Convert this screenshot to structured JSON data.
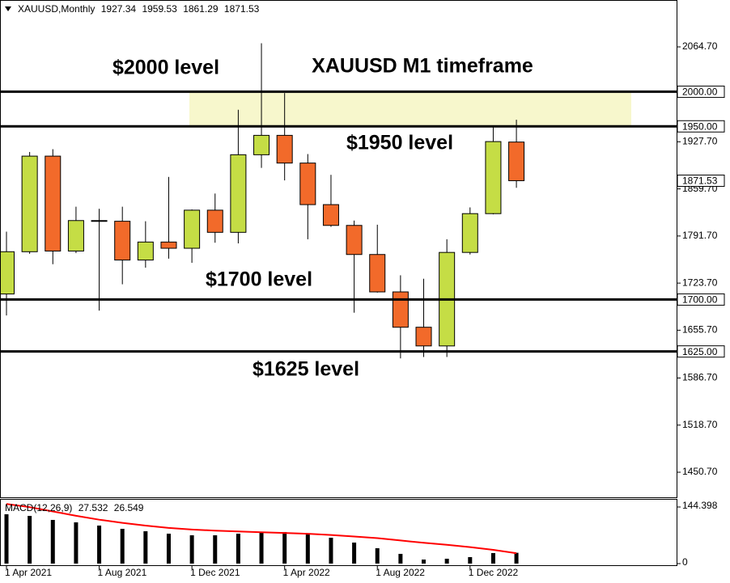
{
  "chart_data": [
    {
      "type": "candlestick",
      "title": "XAUUSD,Monthly",
      "categories": [
        "1 Apr 2021",
        null,
        null,
        null,
        "1 Aug 2021",
        null,
        null,
        null,
        "1 Dec 2021",
        null,
        null,
        null,
        "1 Apr 2022",
        null,
        null,
        null,
        "1 Aug 2022",
        null,
        null,
        null,
        "1 Dec 2022",
        null,
        null
      ],
      "open": [
        1708,
        1769,
        1907,
        1770,
        1814,
        1813,
        1757,
        1783,
        1774,
        1829,
        1797,
        1909,
        1937,
        1897,
        1837,
        1807,
        1765,
        1711,
        1660,
        1633,
        1768,
        1824,
        1927.34
      ],
      "high": [
        1798,
        1913,
        1917,
        1834,
        1831,
        1834,
        1813,
        1877,
        1830,
        1853,
        1974,
        2070,
        1998,
        1910,
        1880,
        1814,
        1808,
        1735,
        1730,
        1787,
        1833,
        1949,
        1959.53
      ],
      "low": [
        1677,
        1766,
        1751,
        1767,
        1684,
        1722,
        1746,
        1759,
        1753,
        1782,
        1781,
        1890,
        1872,
        1787,
        1805,
        1681,
        1710,
        1615,
        1617,
        1617,
        1765,
        1823,
        1861.29
      ],
      "close": [
        1769,
        1907,
        1770,
        1814,
        1813,
        1757,
        1783,
        1774,
        1829,
        1797,
        1909,
        1937,
        1897,
        1837,
        1807,
        1765,
        1711,
        1660,
        1633,
        1768,
        1824,
        1928,
        1871.53
      ],
      "up_color": "#c5dd45",
      "down_color": "#f26a2a",
      "ylim": [
        1414.5,
        2132.4
      ],
      "yticks": [
        {
          "value": 2064.7,
          "label": "2064.70"
        },
        {
          "value": 1927.7,
          "label": "1927.70"
        },
        {
          "value": 1859.7,
          "label": "1859.70"
        },
        {
          "value": 1791.7,
          "label": "1791.70"
        },
        {
          "value": 1723.7,
          "label": "1723.70"
        },
        {
          "value": 1655.7,
          "label": "1655.70"
        },
        {
          "value": 1586.7,
          "label": "1586.70"
        },
        {
          "value": 1518.7,
          "label": "1518.70"
        },
        {
          "value": 1450.7,
          "label": "1450.70"
        }
      ],
      "levels": {
        "values": [
          2000,
          1950,
          1700,
          1625
        ],
        "value_labels": [
          "2000.00",
          "1950.00",
          "1700.00",
          "1625.00"
        ],
        "labels": [
          "$2000 level",
          "$1950 level",
          "$1700 level",
          "$1625 level"
        ]
      },
      "zone": [
        1950,
        2000
      ],
      "zone_color": "#f7f7cc",
      "annotation": "XAUUSD M1 timeframe"
    },
    {
      "type": "macd",
      "title": "MACD(12,26,9)",
      "series": [
        {
          "kind": "bar",
          "color": "#000000",
          "values": [
            125.8,
            121.7,
            111.4,
            105.2,
            97,
            88.7,
            82.5,
            76.3,
            72.2,
            72.2,
            76.3,
            80.5,
            80.5,
            76.3,
            66,
            53.6,
            39.2,
            24.8,
            10.3,
            12.4,
            16.5,
            26.8,
            27.532
          ]
        },
        {
          "kind": "line",
          "color": "#ff0000",
          "values": [
            152,
            144,
            133,
            122,
            112,
            104,
            97,
            91,
            87,
            84,
            82,
            80,
            78,
            76,
            73,
            69,
            65,
            59,
            53,
            48,
            42,
            35,
            26.549
          ]
        }
      ],
      "ylim": [
        -6.2,
        165
      ],
      "yticks": [
        144.398,
        0
      ]
    }
  ]
}
